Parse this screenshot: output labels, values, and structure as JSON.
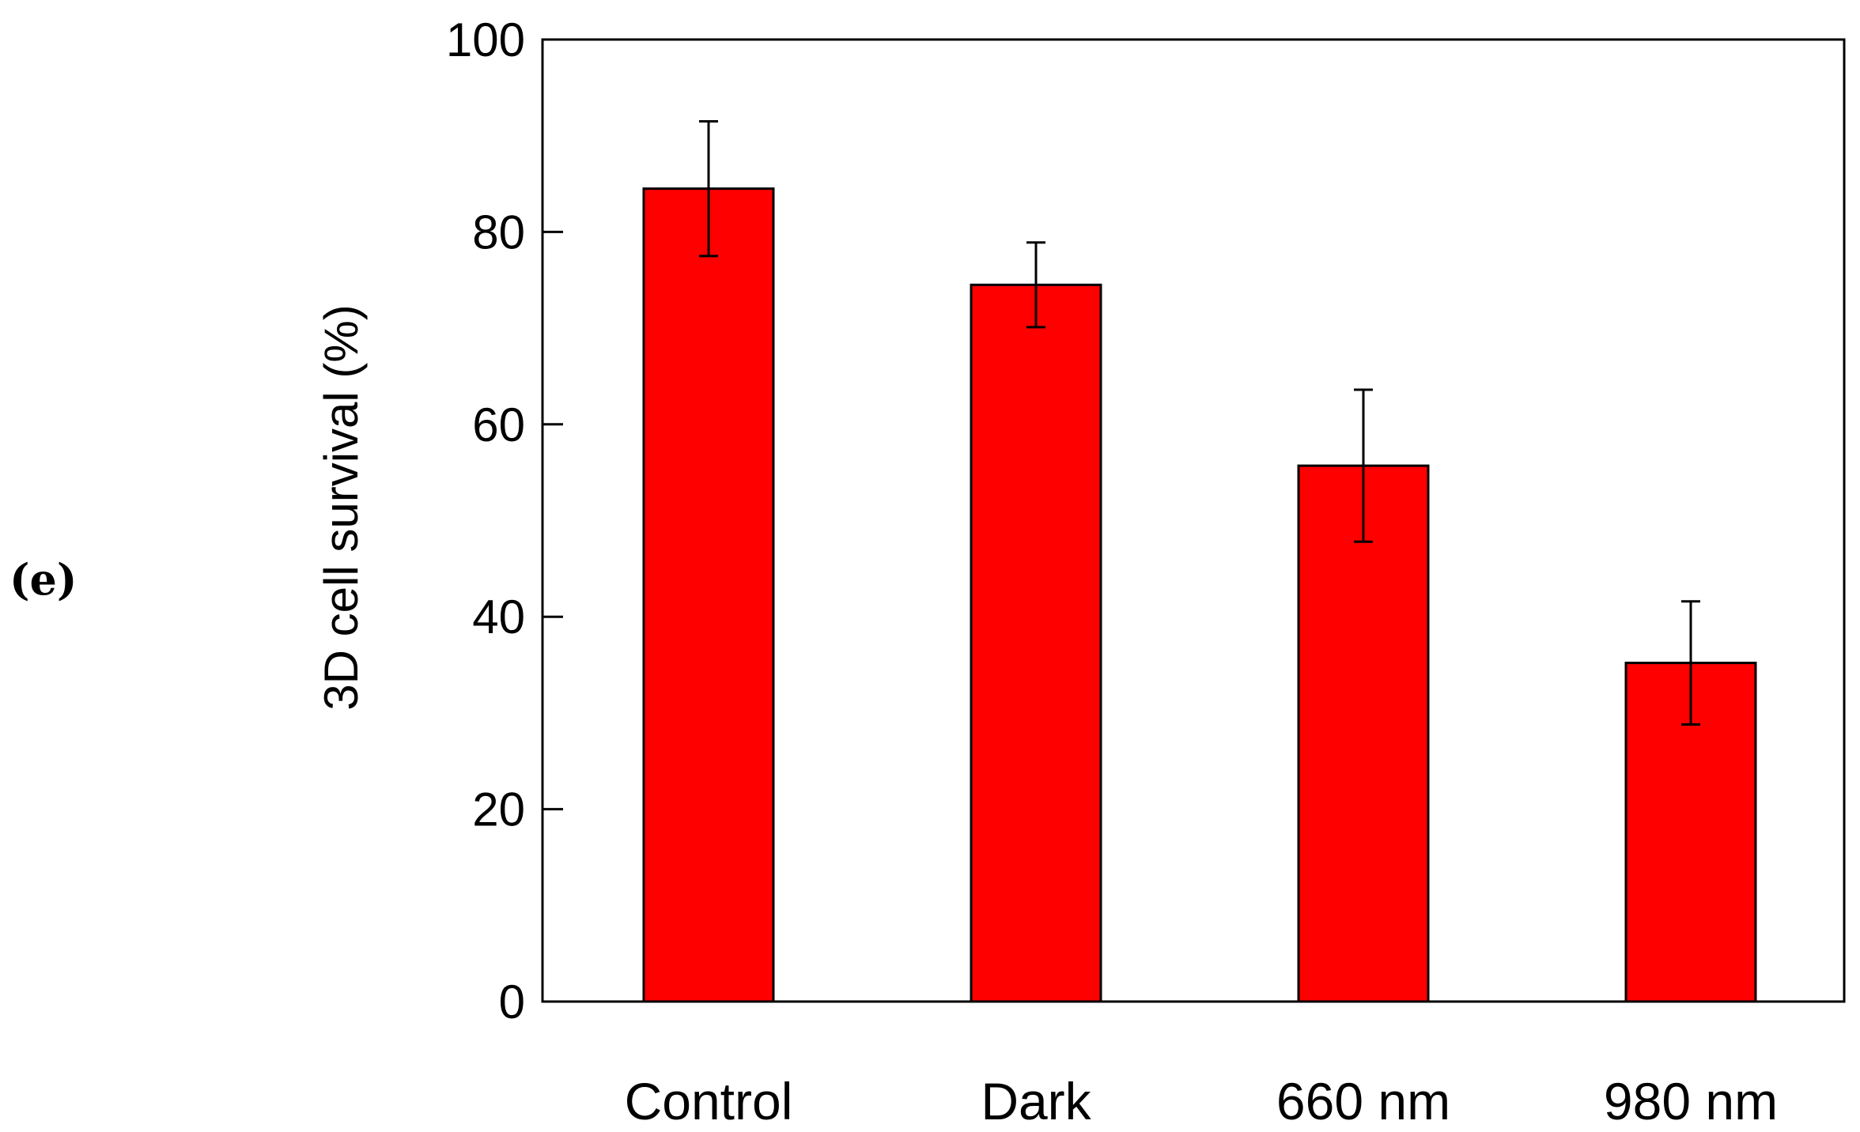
{
  "panel_label": "(e)",
  "chart_data": {
    "type": "bar",
    "categories": [
      "Control",
      "Dark",
      "660 nm",
      "980 nm"
    ],
    "values": [
      84.5,
      74.5,
      55.7,
      35.2
    ],
    "errors": [
      7.0,
      4.4,
      7.9,
      6.4
    ],
    "title": "",
    "xlabel": "",
    "ylabel": "3D cell survival (%)",
    "ylim": [
      0,
      100
    ],
    "yticks": [
      0,
      20,
      40,
      60,
      80,
      100
    ],
    "grid": false,
    "legend": "none",
    "bar_color": "#ff0000",
    "edge_color": "#000000"
  }
}
